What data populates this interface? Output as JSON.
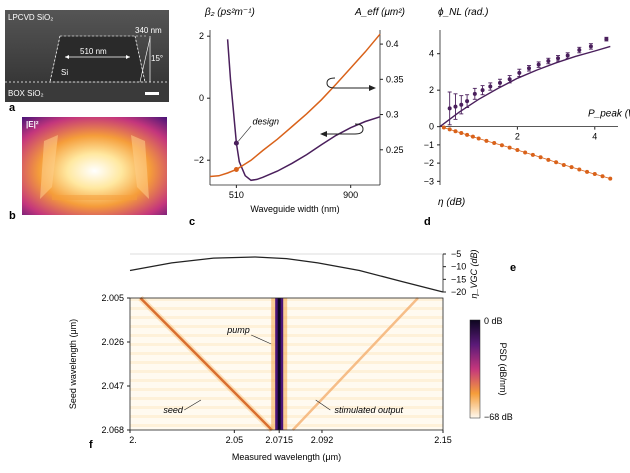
{
  "panels": {
    "a": {
      "letter": "a",
      "labels": [
        "LPCVD SiO₂",
        "340 nm",
        "510 nm",
        "15°",
        "Si",
        "BOX SiO₂"
      ]
    },
    "b": {
      "letter": "b",
      "field_label": "|E|²"
    },
    "c": {
      "letter": "c"
    },
    "d": {
      "letter": "d"
    },
    "e": {
      "letter": "e"
    },
    "f": {
      "letter": "f",
      "pump_label": "pump",
      "seed_label": "seed",
      "output_label": "stimulated output"
    }
  },
  "chart_data": [
    {
      "id": "c",
      "type": "line",
      "xlabel": "Waveguide width (nm)",
      "ylabel_left": "β₂ (ps²m⁻¹)",
      "ylabel_right": "A_eff (μm²)",
      "xlim": [
        420,
        1000
      ],
      "ylim_left": [
        -2.8,
        2.2
      ],
      "ylim_right": [
        0.2,
        0.42
      ],
      "xticks": [
        "510",
        "900"
      ],
      "yticks_left": [
        "2",
        "0",
        "−2"
      ],
      "yticks_right": [
        "0.4",
        "0.35",
        "0.3",
        "0.25"
      ],
      "annotation": "design",
      "series": [
        {
          "name": "beta2",
          "axis": "left",
          "color": "#4a1f5c",
          "x": [
            480,
            490,
            500,
            510,
            520,
            540,
            560,
            580,
            600,
            650,
            700,
            750,
            800,
            850,
            900,
            950,
            1000
          ],
          "y": [
            1.9,
            0.6,
            -0.4,
            -1.45,
            -2.05,
            -2.5,
            -2.65,
            -2.62,
            -2.55,
            -2.35,
            -2.1,
            -1.82,
            -1.5,
            -1.2,
            -0.95,
            -0.75,
            -0.6
          ]
        },
        {
          "name": "Aeff",
          "axis": "right",
          "color": "#d9621a",
          "x": [
            420,
            450,
            480,
            510,
            560,
            600,
            650,
            700,
            750,
            800,
            850,
            900,
            950,
            1000
          ],
          "y": [
            0.212,
            0.213,
            0.217,
            0.222,
            0.235,
            0.249,
            0.265,
            0.283,
            0.301,
            0.321,
            0.343,
            0.366,
            0.389,
            0.414
          ]
        }
      ]
    },
    {
      "id": "d",
      "type": "scatter",
      "xlabel": "P_peak (W)",
      "ylabel_top": "ϕ_NL (rad.)",
      "ylabel_bottom": "η (dB)",
      "xlim": [
        0,
        4.6
      ],
      "ylim": [
        -3.2,
        5.3
      ],
      "xticks": [
        "2",
        "4"
      ],
      "yticks": [
        "4",
        "2",
        "0",
        "−1",
        "−2",
        "−3"
      ],
      "series": [
        {
          "name": "phi_NL",
          "color": "#4a1f5c",
          "x": [
            0.25,
            0.4,
            0.55,
            0.7,
            0.9,
            1.1,
            1.3,
            1.55,
            1.8,
            2.05,
            2.3,
            2.55,
            2.8,
            3.05,
            3.3,
            3.6,
            3.9,
            4.3
          ],
          "y": [
            1.0,
            1.1,
            1.2,
            1.4,
            1.8,
            2.0,
            2.2,
            2.4,
            2.6,
            2.95,
            3.2,
            3.4,
            3.6,
            3.75,
            3.9,
            4.2,
            4.4,
            4.8
          ],
          "err": [
            0.9,
            0.7,
            0.5,
            0.35,
            0.3,
            0.25,
            0.2,
            0.2,
            0.2,
            0.2,
            0.15,
            0.15,
            0.15,
            0.15,
            0.15,
            0.15,
            0.15,
            0.1
          ]
        },
        {
          "name": "phi_NL_fit",
          "color": "#4a1f5c",
          "x": [
            0,
            0.5,
            1,
            1.5,
            2,
            2.5,
            3,
            3.5,
            4,
            4.4
          ],
          "y": [
            0,
            0.8,
            1.5,
            2.1,
            2.65,
            3.1,
            3.5,
            3.85,
            4.15,
            4.4
          ]
        },
        {
          "name": "eta",
          "color": "#d9621a",
          "x": [
            0.1,
            0.25,
            0.4,
            0.55,
            0.7,
            0.85,
            1.0,
            1.2,
            1.4,
            1.6,
            1.8,
            2.0,
            2.2,
            2.4,
            2.6,
            2.8,
            3.0,
            3.2,
            3.4,
            3.6,
            3.8,
            4.0,
            4.2,
            4.4
          ],
          "y": [
            -0.05,
            -0.15,
            -0.25,
            -0.35,
            -0.45,
            -0.55,
            -0.65,
            -0.78,
            -0.9,
            -1.02,
            -1.15,
            -1.28,
            -1.42,
            -1.55,
            -1.68,
            -1.82,
            -1.95,
            -2.1,
            -2.22,
            -2.35,
            -2.48,
            -2.6,
            -2.72,
            -2.85
          ]
        }
      ]
    },
    {
      "id": "e",
      "type": "line",
      "ylabel": "η_VGC (dB)",
      "ylim": [
        -20,
        -5
      ],
      "yticks": [
        "−5",
        "−10",
        "−15",
        "−20"
      ],
      "series": [
        {
          "name": "eta_VGC",
          "color": "#222222",
          "x": [
            2.0,
            2.02,
            2.04,
            2.06,
            2.075,
            2.09,
            2.11,
            2.13,
            2.15
          ],
          "y": [
            -11.5,
            -8.5,
            -6.6,
            -6.2,
            -6.8,
            -8.5,
            -11.5,
            -15.8,
            -20
          ]
        }
      ]
    },
    {
      "id": "f",
      "type": "heatmap",
      "xlabel": "Measured wavelength (μm)",
      "ylabel": "Seed wavelength (μm)",
      "xlim": [
        2.0,
        2.15
      ],
      "ylim": [
        2.005,
        2.068
      ],
      "xticks": [
        "2.",
        "2.05",
        "2.0715",
        "2.092",
        "2.15"
      ],
      "yticks": [
        "2.005",
        "2.026",
        "2.047",
        "2.068"
      ],
      "colorbar_label": "PSD (dB/nm)",
      "colorbar_range": [
        "0 dB",
        "−68 dB"
      ],
      "pump_wavelength": 2.0715
    }
  ]
}
